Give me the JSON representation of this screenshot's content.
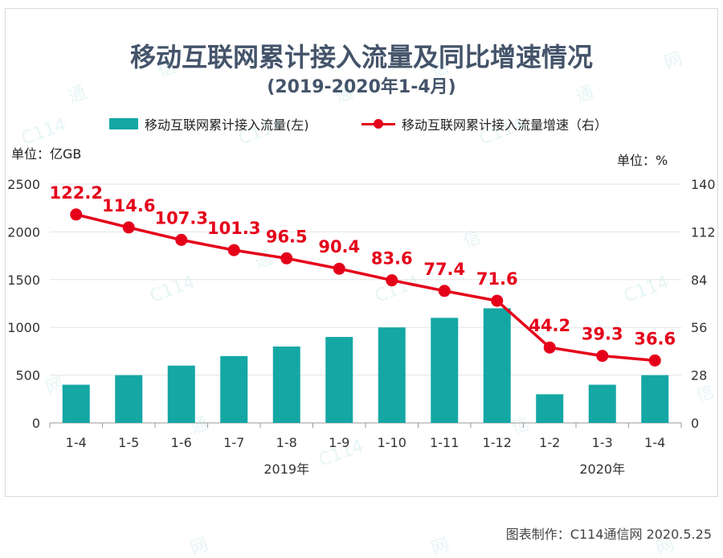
{
  "title": "移动互联网累计接入流量及同比增速情况",
  "subtitle": "(2019-2020年1-4月)",
  "legend": {
    "bar": "移动互联网累计接入流量(左)",
    "line": "移动互联网累计接入流量增速（右）"
  },
  "unit_left": "单位：亿GB",
  "unit_right": "单位：%",
  "credit": "图表制作：C114通信网  2020.5.25",
  "colors": {
    "bar": "#14a7a4",
    "line": "#e5001a",
    "title": "#44546a"
  },
  "chart_data": {
    "type": "bar",
    "categories": [
      "1-4",
      "1-5",
      "1-6",
      "1-7",
      "1-8",
      "1-9",
      "1-10",
      "1-11",
      "1-12",
      "1-2",
      "1-3",
      "1-4"
    ],
    "year_labels": [
      {
        "label": "2019年",
        "start": 0,
        "end": 8
      },
      {
        "label": "2020年",
        "start": 9,
        "end": 11
      }
    ],
    "series": [
      {
        "name": "移动互联网累计接入流量(左)",
        "type": "bar",
        "axis": "left",
        "values": [
          400,
          500,
          600,
          700,
          800,
          900,
          1000,
          1100,
          1200,
          300,
          400,
          500
        ]
      },
      {
        "name": "移动互联网累计接入流量增速（右）",
        "type": "line",
        "axis": "right",
        "values": [
          122.2,
          114.6,
          107.3,
          101.3,
          96.5,
          90.4,
          83.6,
          77.4,
          71.6,
          44.2,
          39.3,
          36.6
        ],
        "labels": [
          "122.2",
          "114.6",
          "107.3",
          "101.3",
          "96.5",
          "90.4",
          "83.6",
          "77.4",
          "71.6",
          "44.2",
          "39.3",
          "36.6"
        ]
      }
    ],
    "y_left": {
      "min": 0,
      "max": 2500,
      "ticks": [
        0,
        500,
        1000,
        1500,
        2000,
        2500
      ]
    },
    "y_right": {
      "min": 0,
      "max": 140,
      "ticks": [
        0,
        28,
        56,
        84,
        112,
        140
      ]
    },
    "grid": true,
    "legend_position": "top"
  }
}
